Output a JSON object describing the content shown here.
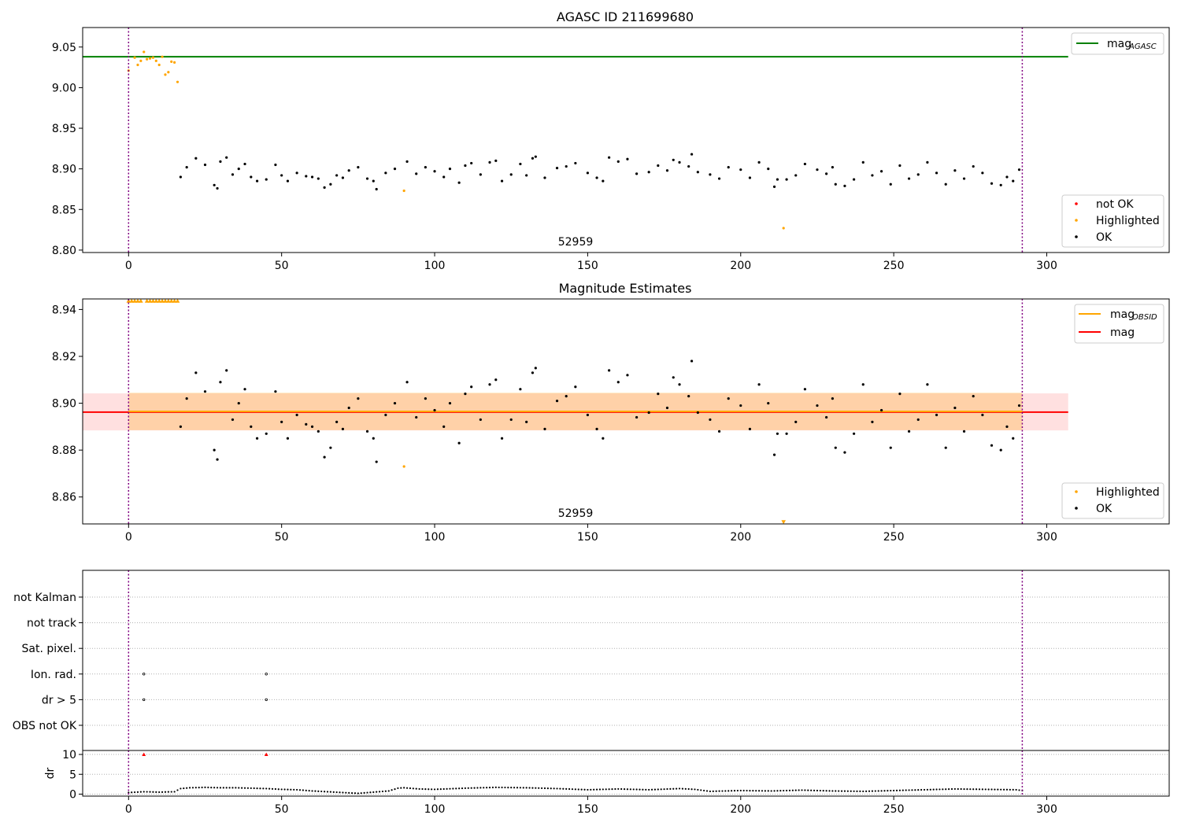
{
  "chart_data": [
    {
      "type": "scatter",
      "title": "AGASC ID 211699680",
      "xlim": [
        -15,
        340
      ],
      "ylim": [
        8.797,
        9.074
      ],
      "xticks": [
        0,
        50,
        100,
        150,
        200,
        250,
        300
      ],
      "yticks": [
        "9.05",
        "9.00",
        "8.95",
        "8.90",
        "8.85",
        "8.80"
      ],
      "annotation": "52959",
      "vlines": [
        0,
        292
      ],
      "legend_upper": {
        "position": "upper right",
        "entries": [
          "mag",
          "AGASC"
        ]
      },
      "legend_lower": {
        "position": "lower right",
        "entries": [
          "not OK",
          "Highlighted",
          "OK"
        ]
      },
      "series": [
        {
          "name": "mag AGASC",
          "kind": "hline",
          "y": 9.038,
          "x_range": [
            -15,
            307
          ],
          "color": "#008000"
        },
        {
          "name": "Highlighted",
          "kind": "points",
          "color": "#ffa500",
          "x": [
            0,
            2,
            3,
            4,
            5,
            6,
            7,
            8,
            9,
            10,
            11,
            12,
            13,
            14,
            15,
            16,
            90,
            214
          ],
          "y": [
            9.021,
            9.037,
            9.028,
            9.033,
            9.044,
            9.035,
            9.036,
            9.037,
            9.033,
            9.028,
            9.038,
            9.016,
            9.019,
            9.032,
            9.031,
            9.007,
            8.873,
            8.827
          ]
        },
        {
          "name": "OK",
          "kind": "points",
          "color": "#000000",
          "x": [
            17,
            19,
            22,
            25,
            28,
            29,
            30,
            32,
            34,
            36,
            38,
            40,
            42,
            45,
            48,
            50,
            52,
            55,
            58,
            60,
            62,
            64,
            66,
            68,
            70,
            72,
            75,
            78,
            80,
            81,
            84,
            87,
            91,
            94,
            97,
            100,
            103,
            105,
            108,
            110,
            112,
            115,
            118,
            120,
            122,
            125,
            128,
            130,
            132,
            133,
            136,
            140,
            143,
            146,
            150,
            153,
            155,
            157,
            160,
            163,
            166,
            170,
            173,
            176,
            178,
            180,
            183,
            184,
            186,
            190,
            193,
            196,
            200,
            203,
            206,
            209,
            211,
            212,
            215,
            218,
            221,
            225,
            228,
            230,
            231,
            234,
            237,
            240,
            243,
            246,
            249,
            252,
            255,
            258,
            261,
            264,
            267,
            270,
            273,
            276,
            279,
            282,
            285,
            287,
            289,
            291
          ],
          "y": [
            8.89,
            8.902,
            8.913,
            8.905,
            8.88,
            8.876,
            8.909,
            8.914,
            8.893,
            8.9,
            8.906,
            8.89,
            8.885,
            8.887,
            8.905,
            8.892,
            8.885,
            8.895,
            8.891,
            8.89,
            8.888,
            8.877,
            8.881,
            8.892,
            8.889,
            8.898,
            8.902,
            8.888,
            8.885,
            8.875,
            8.895,
            8.9,
            8.909,
            8.894,
            8.902,
            8.897,
            8.89,
            8.9,
            8.883,
            8.904,
            8.907,
            8.893,
            8.908,
            8.91,
            8.885,
            8.893,
            8.906,
            8.892,
            8.913,
            8.915,
            8.889,
            8.901,
            8.903,
            8.907,
            8.895,
            8.889,
            8.885,
            8.914,
            8.909,
            8.912,
            8.894,
            8.896,
            8.904,
            8.898,
            8.911,
            8.908,
            8.903,
            8.918,
            8.896,
            8.893,
            8.888,
            8.902,
            8.899,
            8.889,
            8.908,
            8.9,
            8.878,
            8.887,
            8.887,
            8.892,
            8.906,
            8.899,
            8.894,
            8.902,
            8.881,
            8.879,
            8.887,
            8.908,
            8.892,
            8.897,
            8.881,
            8.904,
            8.888,
            8.893,
            8.908,
            8.895,
            8.881,
            8.898,
            8.888,
            8.903,
            8.895,
            8.882,
            8.88,
            8.89,
            8.885,
            8.899
          ]
        }
      ]
    },
    {
      "type": "scatter",
      "title": "Magnitude Estimates",
      "xlim": [
        -15,
        340
      ],
      "ylim": [
        8.8485,
        8.9445
      ],
      "xticks": [
        0,
        50,
        100,
        150,
        200,
        250,
        300
      ],
      "yticks": [
        "8.94",
        "8.92",
        "8.90",
        "8.88",
        "8.86"
      ],
      "annotation": "52959",
      "vlines": [
        0,
        292
      ],
      "legend_upper": {
        "position": "upper right",
        "entries": [
          "mag",
          "OBSID",
          "mag"
        ]
      },
      "legend_lower": {
        "position": "lower right",
        "entries": [
          "Highlighted",
          "OK"
        ]
      },
      "bands": [
        {
          "name": "mag band",
          "y": [
            8.8884,
            8.9042
          ],
          "x_range": [
            -15,
            307
          ],
          "color": "#ff0000",
          "alpha": 0.12
        },
        {
          "name": "mag OBSID band",
          "y": [
            8.8885,
            8.9045
          ],
          "x_range": [
            0,
            292
          ],
          "color": "#ffa500",
          "alpha": 0.25
        }
      ],
      "series": [
        {
          "name": "mag",
          "kind": "hline",
          "y": 8.8962,
          "x_range": [
            -15,
            307
          ],
          "color": "#ff0000"
        },
        {
          "name": "mag OBSID",
          "kind": "hline",
          "y": 8.8965,
          "x_range": [
            0,
            292
          ],
          "color": "#ffa500"
        },
        {
          "name": "Highlighted",
          "kind": "points",
          "color": "#ffa500",
          "x": [
            90
          ],
          "y": [
            8.873
          ]
        },
        {
          "name": "Highlighted (clipped)",
          "kind": "triangles-up",
          "color": "#ffa500",
          "x": [
            0,
            1,
            2,
            3,
            4,
            6,
            7,
            8,
            9,
            10,
            11,
            12,
            13,
            14,
            15,
            16
          ],
          "y": [
            8.9445,
            8.9445,
            8.9445,
            8.9445,
            8.9445,
            8.9445,
            8.9445,
            8.9445,
            8.9445,
            8.9445,
            8.9445,
            8.9445,
            8.9445,
            8.9445,
            8.9445,
            8.9445
          ]
        },
        {
          "name": "Highlighted (clipped low)",
          "kind": "triangles-down",
          "color": "#ffa500",
          "x": [
            214
          ],
          "y": [
            8.8485
          ]
        },
        {
          "name": "OK",
          "kind": "points",
          "color": "#000000",
          "x": [
            17,
            19,
            22,
            25,
            28,
            29,
            30,
            32,
            34,
            36,
            38,
            40,
            42,
            45,
            48,
            50,
            52,
            55,
            58,
            60,
            62,
            64,
            66,
            68,
            70,
            72,
            75,
            78,
            80,
            81,
            84,
            87,
            91,
            94,
            97,
            100,
            103,
            105,
            108,
            110,
            112,
            115,
            118,
            120,
            122,
            125,
            128,
            130,
            132,
            133,
            136,
            140,
            143,
            146,
            150,
            153,
            155,
            157,
            160,
            163,
            166,
            170,
            173,
            176,
            178,
            180,
            183,
            184,
            186,
            190,
            193,
            196,
            200,
            203,
            206,
            209,
            211,
            212,
            215,
            218,
            221,
            225,
            228,
            230,
            231,
            234,
            237,
            240,
            243,
            246,
            249,
            252,
            255,
            258,
            261,
            264,
            267,
            270,
            273,
            276,
            279,
            282,
            285,
            287,
            289,
            291
          ],
          "y": [
            8.89,
            8.902,
            8.913,
            8.905,
            8.88,
            8.876,
            8.909,
            8.914,
            8.893,
            8.9,
            8.906,
            8.89,
            8.885,
            8.887,
            8.905,
            8.892,
            8.885,
            8.895,
            8.891,
            8.89,
            8.888,
            8.877,
            8.881,
            8.892,
            8.889,
            8.898,
            8.902,
            8.888,
            8.885,
            8.875,
            8.895,
            8.9,
            8.909,
            8.894,
            8.902,
            8.897,
            8.89,
            8.9,
            8.883,
            8.904,
            8.907,
            8.893,
            8.908,
            8.91,
            8.885,
            8.893,
            8.906,
            8.892,
            8.913,
            8.915,
            8.889,
            8.901,
            8.903,
            8.907,
            8.895,
            8.889,
            8.885,
            8.914,
            8.909,
            8.912,
            8.894,
            8.896,
            8.904,
            8.898,
            8.911,
            8.908,
            8.903,
            8.918,
            8.896,
            8.893,
            8.888,
            8.902,
            8.899,
            8.889,
            8.908,
            8.9,
            8.878,
            8.887,
            8.887,
            8.892,
            8.906,
            8.899,
            8.894,
            8.902,
            8.881,
            8.879,
            8.887,
            8.908,
            8.892,
            8.897,
            8.881,
            8.904,
            8.888,
            8.893,
            8.908,
            8.895,
            8.881,
            8.898,
            8.888,
            8.903,
            8.895,
            8.882,
            8.88,
            8.89,
            8.885,
            8.899
          ]
        }
      ]
    },
    {
      "type": "scatter",
      "title": "",
      "xlim": [
        -15,
        340
      ],
      "xticks": [
        0,
        50,
        100,
        150,
        200,
        250,
        300
      ],
      "categories": [
        "not Kalman",
        "not track",
        "Sat. pixel.",
        "Ion. rad.",
        "dr > 5",
        "OBS not OK"
      ],
      "vlines": [
        0,
        292
      ],
      "series": [
        {
          "name": "Ion. rad.",
          "category": "Ion. rad.",
          "x": [
            5,
            45
          ],
          "color": "#000000"
        },
        {
          "name": "dr > 5",
          "category": "dr > 5",
          "x": [
            5,
            45
          ],
          "color": "#000000"
        }
      ]
    },
    {
      "type": "scatter",
      "title": "",
      "ylabel": "dr",
      "xlim": [
        -15,
        340
      ],
      "ylim": [
        -0.5,
        11
      ],
      "xticks": [
        0,
        50,
        100,
        150,
        200,
        250,
        300
      ],
      "yticks": [
        "10",
        "5",
        "0"
      ],
      "vlines": [
        0,
        292
      ],
      "series": [
        {
          "name": "dr clipped",
          "kind": "triangles-up",
          "color": "#ff0000",
          "x": [
            5,
            45
          ],
          "y": [
            10,
            10
          ]
        },
        {
          "name": "dr",
          "kind": "line-points",
          "color": "#000000",
          "x": [
            0,
            5,
            10,
            15,
            17,
            20,
            25,
            30,
            35,
            40,
            45,
            50,
            55,
            60,
            65,
            70,
            75,
            80,
            85,
            88,
            90,
            95,
            100,
            110,
            120,
            130,
            140,
            150,
            160,
            170,
            180,
            185,
            190,
            200,
            210,
            220,
            230,
            240,
            250,
            260,
            270,
            280,
            290,
            292
          ],
          "y": [
            0.4,
            0.6,
            0.5,
            0.6,
            1.4,
            1.6,
            1.7,
            1.6,
            1.6,
            1.5,
            1.4,
            1.2,
            1.1,
            0.8,
            0.6,
            0.4,
            0.2,
            0.5,
            0.8,
            1.5,
            1.6,
            1.3,
            1.2,
            1.5,
            1.7,
            1.6,
            1.4,
            1.1,
            1.3,
            1.1,
            1.4,
            1.2,
            0.7,
            0.9,
            0.8,
            1.0,
            0.8,
            0.7,
            0.9,
            1.1,
            1.3,
            1.2,
            1.1,
            0.9
          ]
        }
      ]
    }
  ]
}
